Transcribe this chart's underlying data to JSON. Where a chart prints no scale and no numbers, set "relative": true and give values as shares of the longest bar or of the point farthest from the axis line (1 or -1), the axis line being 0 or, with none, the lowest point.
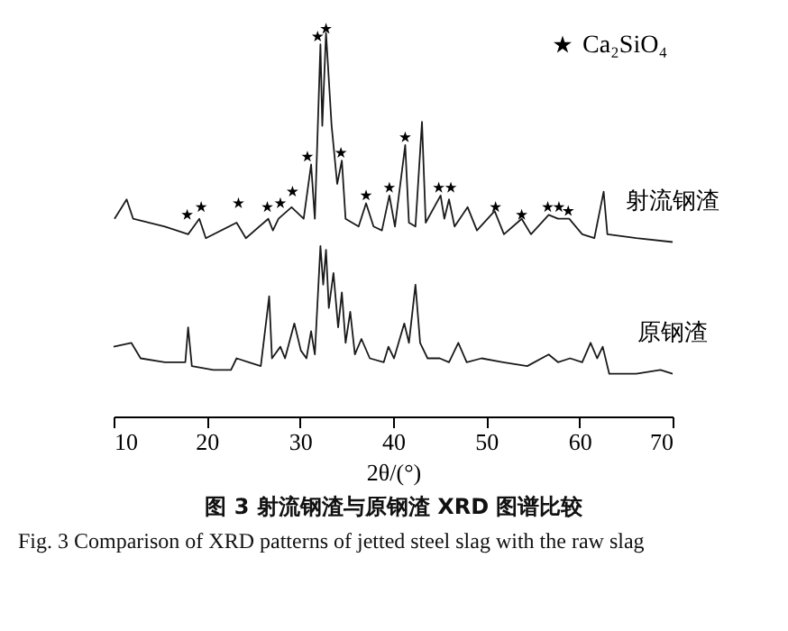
{
  "chart_data": {
    "type": "line",
    "relative": true,
    "xlabel": "2θ/(°)",
    "xlim": [
      10,
      70
    ],
    "xticks": [
      10,
      20,
      30,
      40,
      50,
      60,
      70
    ],
    "grid": false,
    "legend": "top right",
    "annotations": [
      "图 3  射流钢渣与原钢渣 XRD 图谱比较",
      "Fig. 3  Comparison of XRD patterns of jetted steel slag with the raw slag"
    ],
    "series": [
      {
        "name": "射流钢渣",
        "color": "#1a1a1a",
        "x": [
          10.1,
          11.4,
          12.1,
          15.5,
          18,
          19.2,
          19.9,
          23.2,
          24.2,
          26.6,
          27.1,
          27.7,
          29.1,
          30.4,
          31.2,
          31.6,
          32.2,
          32.4,
          32.8,
          33.4,
          34,
          34.5,
          34.9,
          36.3,
          37.1,
          37.9,
          38.8,
          39.6,
          40.2,
          41.3,
          41.7,
          42.4,
          43.1,
          43.5,
          45.1,
          45.5,
          46,
          46.6,
          48,
          49,
          50.9,
          51.9,
          53.8,
          54.8,
          56.7,
          57.7,
          58.9,
          60.3,
          61.6,
          62.6,
          63,
          66.1,
          70
        ],
        "values": [
          0.51,
          0.56,
          0.51,
          0.49,
          0.47,
          0.51,
          0.46,
          0.5,
          0.46,
          0.51,
          0.48,
          0.51,
          0.54,
          0.51,
          0.65,
          0.51,
          0.96,
          0.75,
          0.99,
          0.75,
          0.6,
          0.66,
          0.51,
          0.49,
          0.55,
          0.49,
          0.48,
          0.57,
          0.49,
          0.7,
          0.5,
          0.49,
          0.76,
          0.5,
          0.57,
          0.51,
          0.56,
          0.49,
          0.54,
          0.48,
          0.53,
          0.47,
          0.51,
          0.47,
          0.52,
          0.51,
          0.51,
          0.47,
          0.46,
          0.58,
          0.47,
          0.46,
          0.45
        ]
      },
      {
        "name": "原钢渣",
        "color": "#1a1a1a",
        "x": [
          10,
          11.9,
          12.9,
          15.5,
          17.7,
          18,
          18.4,
          20.7,
          22.6,
          23.2,
          24.5,
          25.8,
          26.7,
          27,
          27.9,
          28.4,
          29.4,
          30.1,
          30.7,
          31.2,
          31.6,
          32.2,
          32.5,
          32.8,
          33.1,
          33.6,
          34.1,
          34.5,
          34.9,
          35.4,
          35.9,
          36.6,
          37.5,
          39,
          39.5,
          40.1,
          41.2,
          41.7,
          42.4,
          42.9,
          43.7,
          45,
          46,
          47,
          47.9,
          49.5,
          51.8,
          54.4,
          56.7,
          57.7,
          59,
          60.3,
          61.2,
          61.9,
          62.5,
          63.2,
          66.1,
          68.7,
          70
        ],
        "values": [
          0.18,
          0.19,
          0.15,
          0.14,
          0.14,
          0.23,
          0.13,
          0.12,
          0.12,
          0.15,
          0.14,
          0.13,
          0.31,
          0.15,
          0.18,
          0.15,
          0.24,
          0.17,
          0.15,
          0.22,
          0.16,
          0.44,
          0.34,
          0.43,
          0.28,
          0.37,
          0.23,
          0.32,
          0.19,
          0.27,
          0.16,
          0.2,
          0.15,
          0.14,
          0.18,
          0.15,
          0.24,
          0.19,
          0.34,
          0.19,
          0.15,
          0.15,
          0.14,
          0.19,
          0.14,
          0.15,
          0.14,
          0.13,
          0.16,
          0.14,
          0.15,
          0.14,
          0.19,
          0.15,
          0.18,
          0.11,
          0.11,
          0.12,
          0.11
        ]
      },
      {
        "name": "Ca₂SiO₄",
        "type": "scatter",
        "marker": "star",
        "color": "#000000",
        "x": [
          17.9,
          19.4,
          23.4,
          26.5,
          27.9,
          29.2,
          30.8,
          31.9,
          32.8,
          34.4,
          37.1,
          39.6,
          41.3,
          44.9,
          46.2,
          51,
          53.8,
          56.6,
          57.8,
          58.8
        ],
        "values": [
          0.52,
          0.54,
          0.55,
          0.54,
          0.55,
          0.58,
          0.67,
          0.98,
          1.0,
          0.68,
          0.57,
          0.59,
          0.72,
          0.59,
          0.59,
          0.54,
          0.52,
          0.54,
          0.54,
          0.53
        ]
      }
    ]
  }
}
